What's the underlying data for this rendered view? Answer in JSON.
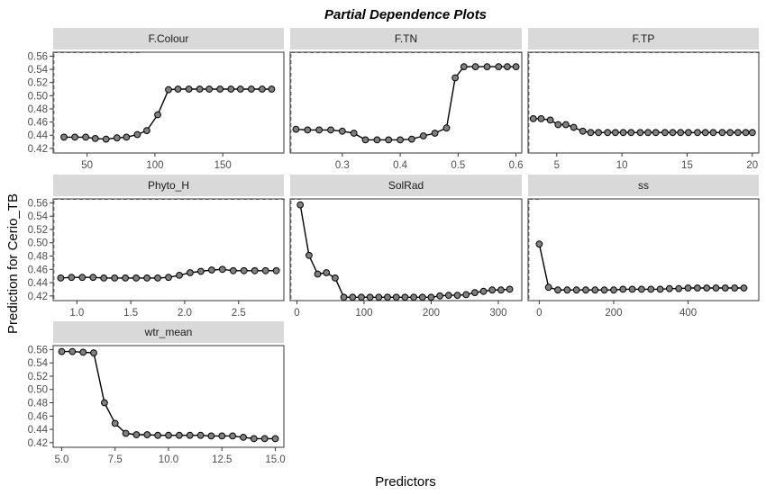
{
  "chart_data": {
    "type": "line",
    "title": "Partial Dependence Plots",
    "xlabel": "Predictors",
    "ylabel": "Prediction for Cerio_TB",
    "ylim": [
      0.413,
      0.566
    ],
    "yticks": [
      0.42,
      0.44,
      0.46,
      0.48,
      0.5,
      0.52,
      0.54,
      0.56
    ],
    "ytick_labels": [
      "0.42",
      "0.44",
      "0.46",
      "0.48",
      "0.50",
      "0.52",
      "0.54",
      "0.56"
    ],
    "grid": false,
    "markers": true,
    "colors": {
      "marker_fill": "#808080",
      "line": "#000000",
      "strip": "#d9d9d9",
      "rug": "#333333"
    },
    "panels": [
      {
        "name": "F.Colour",
        "xlim": [
          25,
          195
        ],
        "xticks": [
          50,
          100,
          150
        ],
        "xtick_labels": [
          "50",
          "100",
          "150"
        ],
        "x": [
          33,
          41,
          49,
          56,
          64,
          72,
          79,
          87,
          94,
          102,
          110,
          117,
          125,
          133,
          140,
          148,
          156,
          163,
          171,
          179,
          186
        ],
        "y": [
          0.437,
          0.437,
          0.437,
          0.435,
          0.434,
          0.436,
          0.437,
          0.441,
          0.447,
          0.471,
          0.509,
          0.51,
          0.51,
          0.51,
          0.51,
          0.51,
          0.51,
          0.51,
          0.51,
          0.51,
          0.51
        ],
        "rug": [
          [
            25,
            90
          ]
        ]
      },
      {
        "name": "F.TN",
        "xlim": [
          0.21,
          0.61
        ],
        "xticks": [
          0.3,
          0.4,
          0.5,
          0.6
        ],
        "xtick_labels": [
          "0.3",
          "0.4",
          "0.5",
          "0.6"
        ],
        "x": [
          0.22,
          0.24,
          0.26,
          0.28,
          0.3,
          0.32,
          0.34,
          0.36,
          0.38,
          0.4,
          0.42,
          0.44,
          0.46,
          0.48,
          0.495,
          0.51,
          0.53,
          0.55,
          0.57,
          0.585,
          0.6
        ],
        "y": [
          0.449,
          0.448,
          0.448,
          0.448,
          0.446,
          0.443,
          0.433,
          0.433,
          0.433,
          0.433,
          0.434,
          0.439,
          0.443,
          0.451,
          0.527,
          0.544,
          0.544,
          0.544,
          0.544,
          0.544,
          0.544
        ],
        "rug": [
          [
            0.21,
            0.61
          ]
        ]
      },
      {
        "name": "F.TP",
        "xlim": [
          2.8,
          20.5
        ],
        "xticks": [
          5,
          10,
          15,
          20
        ],
        "xtick_labels": [
          "5",
          "10",
          "15",
          "20"
        ],
        "x": [
          3.2,
          3.8,
          4.5,
          5.1,
          5.7,
          6.3,
          7.0,
          7.6,
          8.2,
          8.9,
          9.5,
          10.1,
          10.7,
          11.4,
          12.0,
          12.6,
          13.3,
          13.9,
          14.5,
          15.1,
          15.8,
          16.4,
          17.0,
          17.7,
          18.3,
          18.9,
          19.5,
          20.0
        ],
        "y": [
          0.465,
          0.465,
          0.463,
          0.456,
          0.456,
          0.452,
          0.446,
          0.444,
          0.444,
          0.444,
          0.444,
          0.444,
          0.444,
          0.444,
          0.444,
          0.444,
          0.444,
          0.444,
          0.444,
          0.444,
          0.444,
          0.444,
          0.444,
          0.444,
          0.444,
          0.444,
          0.444,
          0.444
        ],
        "rug": [
          [
            2.8,
            20.5
          ]
        ]
      },
      {
        "name": "Phyto_H",
        "xlim": [
          0.78,
          2.92
        ],
        "xticks": [
          1.0,
          1.5,
          2.0,
          2.5
        ],
        "xtick_labels": [
          "1.0",
          "1.5",
          "2.0",
          "2.5"
        ],
        "x": [
          0.85,
          0.95,
          1.05,
          1.15,
          1.25,
          1.35,
          1.45,
          1.55,
          1.65,
          1.75,
          1.85,
          1.95,
          2.05,
          2.15,
          2.25,
          2.35,
          2.45,
          2.55,
          2.65,
          2.75,
          2.85
        ],
        "y": [
          0.447,
          0.448,
          0.448,
          0.448,
          0.447,
          0.447,
          0.447,
          0.447,
          0.447,
          0.447,
          0.448,
          0.451,
          0.455,
          0.457,
          0.459,
          0.46,
          0.458,
          0.458,
          0.458,
          0.458,
          0.458
        ],
        "rug": [
          [
            0.78,
            2.92
          ]
        ]
      },
      {
        "name": "SolRad",
        "xlim": [
          -10,
          335
        ],
        "xticks": [
          0,
          100,
          200,
          300
        ],
        "xtick_labels": [
          "0",
          "100",
          "200",
          "300"
        ],
        "x": [
          5,
          18,
          31,
          44,
          57,
          70,
          83,
          96,
          109,
          122,
          135,
          148,
          161,
          174,
          187,
          200,
          213,
          226,
          239,
          252,
          265,
          278,
          291,
          304,
          317
        ],
        "y": [
          0.557,
          0.481,
          0.453,
          0.455,
          0.447,
          0.418,
          0.418,
          0.418,
          0.418,
          0.418,
          0.418,
          0.418,
          0.418,
          0.418,
          0.418,
          0.418,
          0.42,
          0.421,
          0.421,
          0.422,
          0.425,
          0.427,
          0.429,
          0.429,
          0.43
        ],
        "rug": [
          [
            -10,
            5
          ]
        ]
      },
      {
        "name": "ss",
        "xlim": [
          -30,
          590
        ],
        "xticks": [
          0,
          200,
          400
        ],
        "xtick_labels": [
          "0",
          "200",
          "400"
        ],
        "x": [
          0,
          25,
          50,
          75,
          100,
          125,
          150,
          175,
          200,
          225,
          250,
          275,
          300,
          325,
          350,
          375,
          400,
          425,
          450,
          475,
          500,
          525,
          550
        ],
        "y": [
          0.498,
          0.433,
          0.429,
          0.429,
          0.429,
          0.429,
          0.429,
          0.429,
          0.429,
          0.43,
          0.43,
          0.43,
          0.43,
          0.43,
          0.431,
          0.431,
          0.432,
          0.432,
          0.432,
          0.432,
          0.432,
          0.432,
          0.432
        ],
        "rug": [
          [
            -30,
            0
          ]
        ]
      },
      {
        "name": "wtr_mean",
        "xlim": [
          4.6,
          15.4
        ],
        "xticks": [
          5.0,
          7.5,
          10.0,
          12.5,
          15.0
        ],
        "xtick_labels": [
          "5.0",
          "7.5",
          "10.0",
          "12.5",
          "15.0"
        ],
        "x": [
          5.0,
          5.5,
          6.0,
          6.5,
          7.0,
          7.5,
          8.0,
          8.5,
          9.0,
          9.5,
          10.0,
          10.5,
          11.0,
          11.5,
          12.0,
          12.5,
          13.0,
          13.5,
          14.0,
          14.5,
          15.0
        ],
        "y": [
          0.557,
          0.557,
          0.556,
          0.555,
          0.48,
          0.449,
          0.434,
          0.432,
          0.432,
          0.431,
          0.431,
          0.431,
          0.431,
          0.431,
          0.43,
          0.43,
          0.43,
          0.428,
          0.426,
          0.426,
          0.426
        ],
        "rug": []
      }
    ]
  }
}
